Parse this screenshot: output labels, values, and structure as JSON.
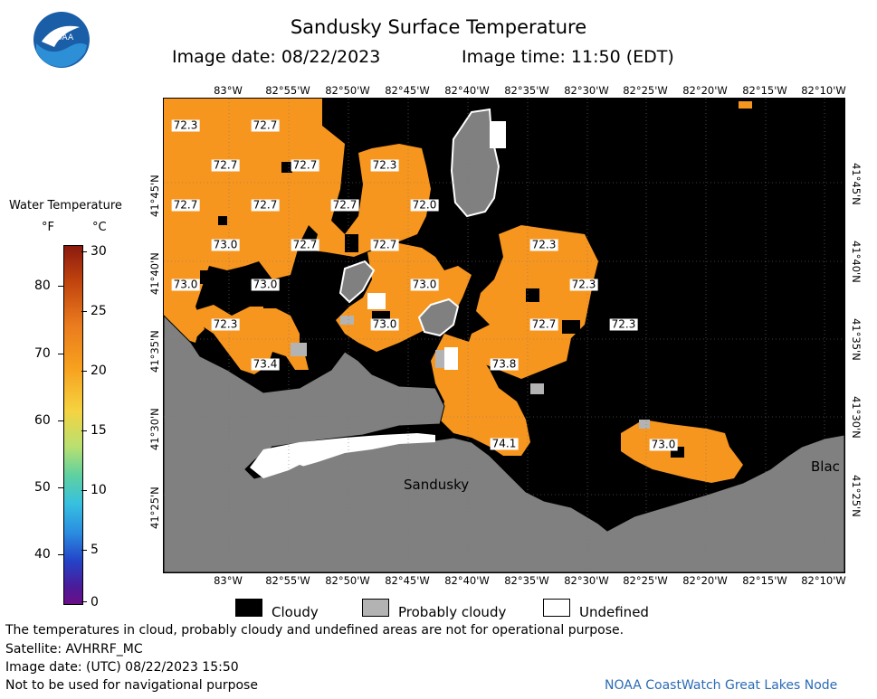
{
  "title": "Sandusky Surface Temperature",
  "image_date_label": "Image date: 08/22/2023",
  "image_time_label": "Image time: 11:50 (EDT)",
  "logo_text": "NOAA",
  "lon_labels": [
    "83°W",
    "82°55'W",
    "82°50'W",
    "82°45'W",
    "82°40'W",
    "82°35'W",
    "82°30'W",
    "82°25'W",
    "82°20'W",
    "82°15'W",
    "82°10'W"
  ],
  "lat_labels": [
    "41°45'N",
    "41°40'N",
    "41°35'N",
    "41°30'N",
    "41°25'N"
  ],
  "colorbar": {
    "title": "Water Temperature",
    "unit_f": "°F",
    "unit_c": "°C",
    "f_ticks": [
      "80",
      "70",
      "60",
      "50",
      "40"
    ],
    "c_ticks": [
      "30",
      "25",
      "20",
      "15",
      "10",
      "5",
      "0"
    ]
  },
  "temperature_labels": [
    {
      "value": "72.3"
    },
    {
      "value": "72.7"
    },
    {
      "value": "72.7"
    },
    {
      "value": "72.7"
    },
    {
      "value": "72.3"
    },
    {
      "value": "72.7"
    },
    {
      "value": "72.7"
    },
    {
      "value": "72.7"
    },
    {
      "value": "72.0"
    },
    {
      "value": "73.0"
    },
    {
      "value": "72.7"
    },
    {
      "value": "72.7"
    },
    {
      "value": "72.3"
    },
    {
      "value": "73.0"
    },
    {
      "value": "73.0"
    },
    {
      "value": "73.0"
    },
    {
      "value": "72.3"
    },
    {
      "value": "72.3"
    },
    {
      "value": "73.0"
    },
    {
      "value": "72.7"
    },
    {
      "value": "72.3"
    },
    {
      "value": "73.4"
    },
    {
      "value": "73.8"
    },
    {
      "value": "74.1"
    },
    {
      "value": "73.0"
    }
  ],
  "places": {
    "sandusky": "Sandusky",
    "blac": "Blac"
  },
  "legend": {
    "cloudy": "Cloudy",
    "probably_cloudy": "Probably cloudy",
    "undefined": "Undefined"
  },
  "colors": {
    "water": "#f7961e",
    "cloud": "#000000",
    "land": "#808080",
    "probably_cloudy": "#b3b3b3",
    "undefined": "#ffffff"
  },
  "footer": {
    "note": "The temperatures in cloud, probably cloudy and undefined areas are not for operational purpose.",
    "satellite": "Satellite: AVHRRF_MC",
    "utc_date": "Image date: (UTC) 08/22/2023  15:50",
    "nav": "Not to be used for navigational purpose",
    "credit": "NOAA CoastWatch Great Lakes Node"
  }
}
